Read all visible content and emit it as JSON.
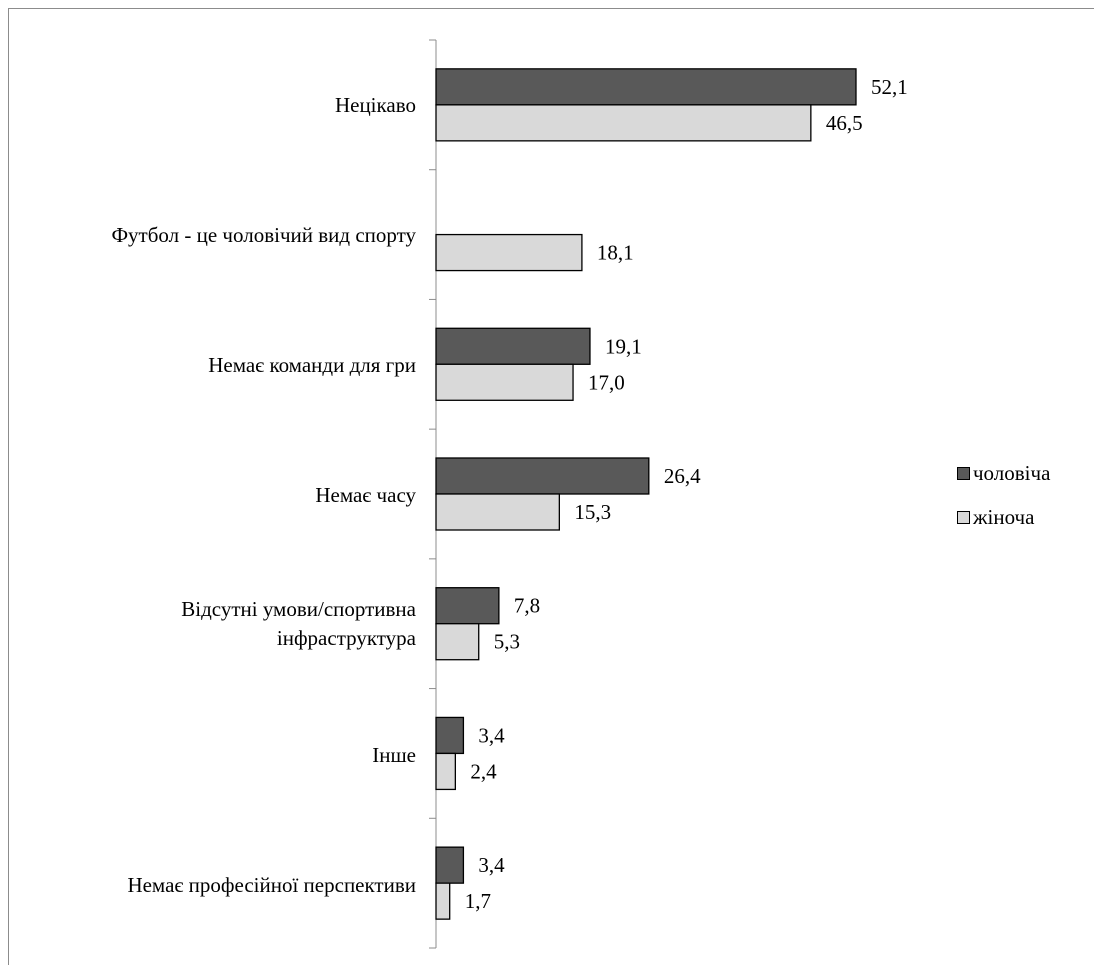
{
  "chart_data": {
    "type": "bar",
    "orientation": "horizontal",
    "categories": [
      "Нецікаво",
      "Футбол - це чоловічий вид спорту",
      "Немає команди для гри",
      "Немає часу",
      "Відсутні умови/спортивна інфраструктура",
      "Інше",
      "Немає професійної перспективи"
    ],
    "series": [
      {
        "name": "чоловіча",
        "values": [
          52.1,
          null,
          19.1,
          26.4,
          7.8,
          3.4,
          3.4
        ],
        "labels": [
          "52,1",
          "",
          "19,1",
          "26,4",
          "7,8",
          "3,4",
          "3,4"
        ],
        "color": "#595959"
      },
      {
        "name": "жіноча",
        "values": [
          46.5,
          18.1,
          17.0,
          15.3,
          5.3,
          2.4,
          1.7
        ],
        "labels": [
          "46,5",
          "18,1",
          "17,0",
          "15,3",
          "5,3",
          "2,4",
          "1,7"
        ],
        "color": "#d9d9d9"
      }
    ],
    "xlim": [
      0,
      80
    ],
    "grid": false,
    "legend": "right"
  }
}
